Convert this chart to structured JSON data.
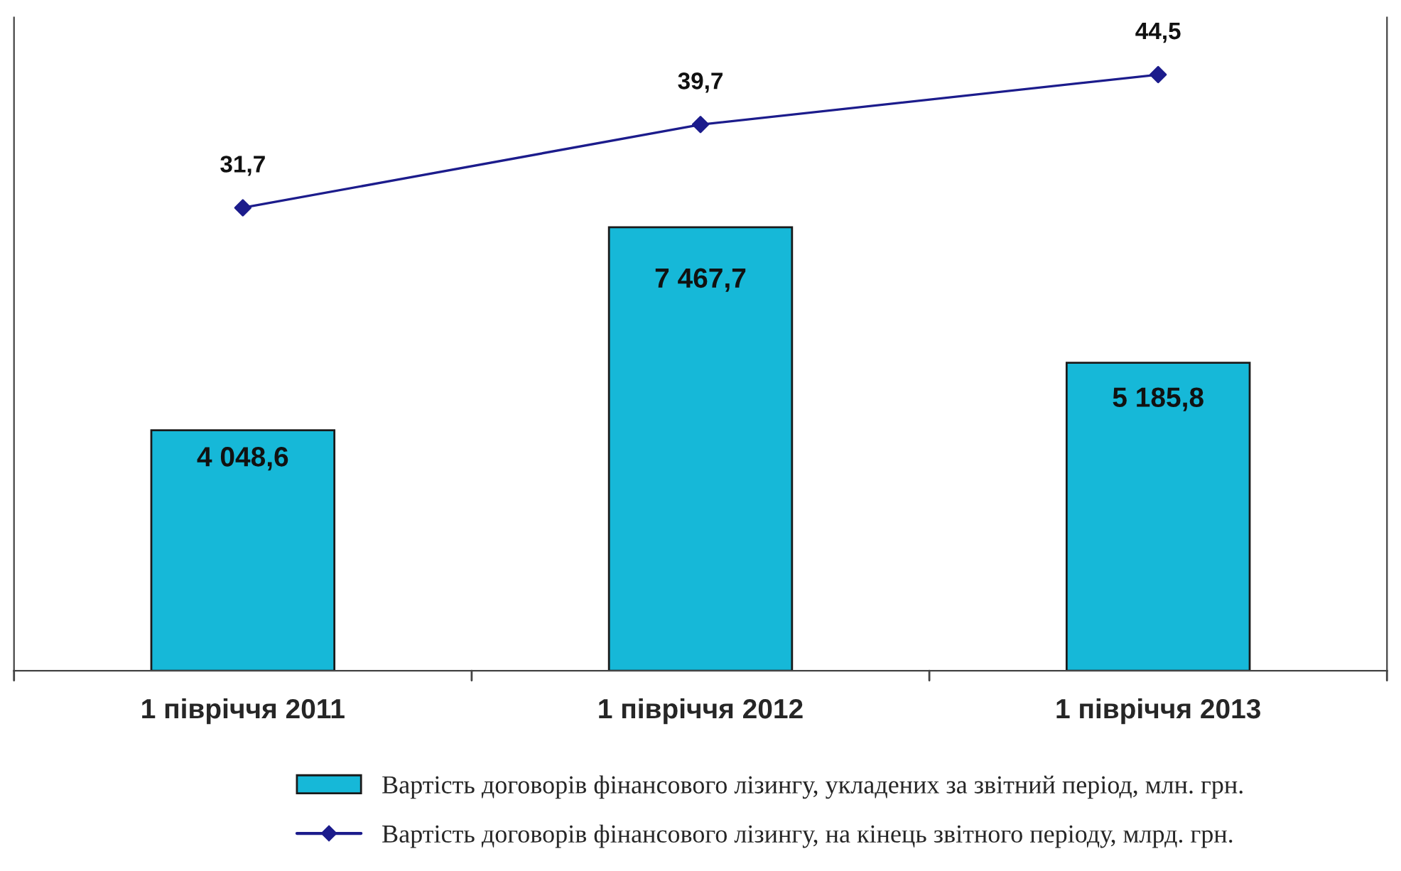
{
  "chart_data": {
    "type": "bar",
    "categories": [
      "1 півріччя 2011",
      "1 півріччя 2012",
      "1 півріччя 2013"
    ],
    "series": [
      {
        "name": "Вартість договорів фінансового лізингу, укладених за звітний період, млн. грн.",
        "color": "#16b8d8",
        "values": [
          4048.6,
          7467.7,
          5185.8
        ],
        "value_labels": [
          "4 048,6",
          "7 467,7",
          "5 185,8"
        ]
      },
      {
        "name": "Вартість договорів фінансового лізингу, на кінець звітного періоду, млрд. грн.",
        "type": "line",
        "axis": "y2",
        "color": "#1c1c8c",
        "marker": "diamond",
        "line_style": "solid",
        "values": [
          31.7,
          39.7,
          44.5
        ],
        "value_labels": [
          "31,7",
          "39,7",
          "44,5"
        ]
      }
    ],
    "ylim": [
      0,
      11000
    ],
    "y2lim": [
      -12.8,
      50
    ],
    "legend": "bottom",
    "grid": false
  }
}
